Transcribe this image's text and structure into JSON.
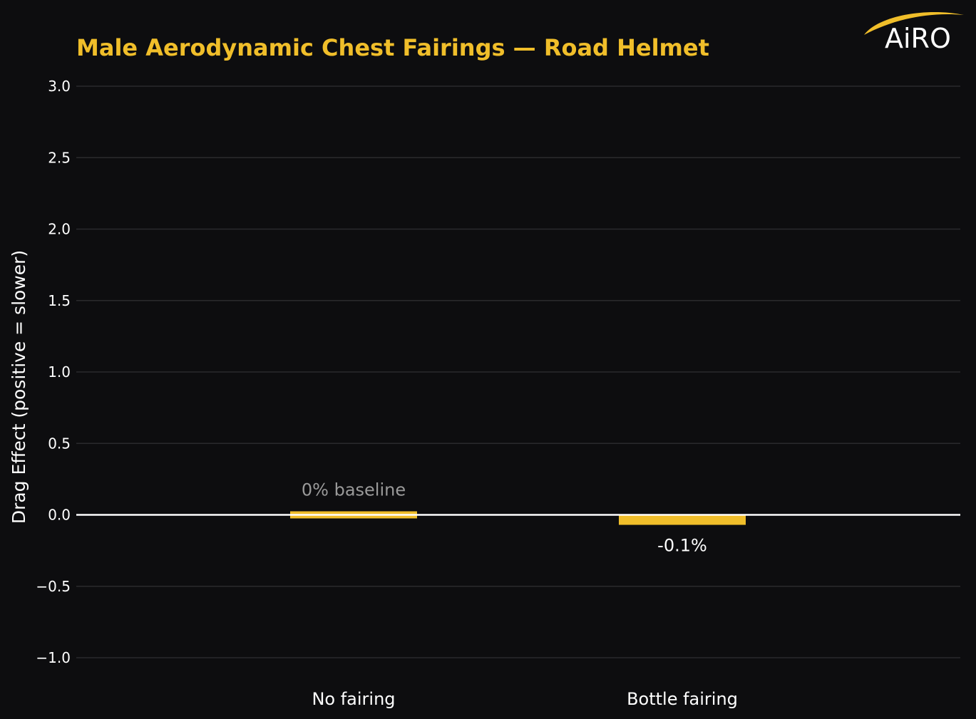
{
  "colors": {
    "background": "#0d0d0f",
    "accent": "#f0be2a",
    "grid": "#2a2a2d",
    "zero_line": "#ffffff",
    "text": "#ffffff",
    "muted_text": "#9a9a9a"
  },
  "logo": {
    "text": "AiRO"
  },
  "chart_data": {
    "type": "bar",
    "title": "Male Aerodynamic Chest Fairings — Road Helmet",
    "xlabel": "",
    "ylabel": "Drag Effect (positive = slower)",
    "ylim": [
      -1.0,
      3.0
    ],
    "yticks": [
      3.0,
      2.5,
      2.0,
      1.5,
      1.0,
      0.5,
      0.0,
      -0.5,
      -1.0
    ],
    "ytick_labels": [
      "3.0",
      "2.5",
      "2.0",
      "1.5",
      "1.0",
      "0.5",
      "0.0",
      "−0.5",
      "−1.0"
    ],
    "grid": true,
    "categories": [
      "No fairing",
      "Bottle fairing"
    ],
    "values": [
      0.0,
      -0.07
    ],
    "data_labels": [
      "0% baseline",
      "-0.1%"
    ]
  }
}
